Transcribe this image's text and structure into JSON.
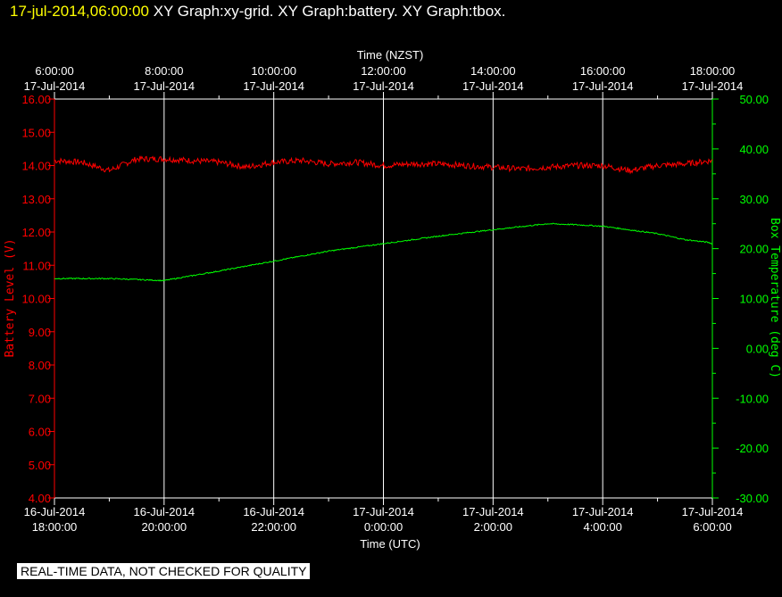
{
  "header": {
    "timestamp": "17-jul-2014,06:00:00",
    "graph_titles": [
      "XY Graph:xy-grid.",
      "XY Graph:battery.",
      "XY Graph:tbox."
    ]
  },
  "note": "REAL-TIME DATA, NOT CHECKED FOR QUALITY",
  "colors": {
    "background": "#000000",
    "grid": "#ffffff",
    "battery": "#ff0000",
    "temperature": "#00ff00",
    "header_timestamp": "#ffff00"
  },
  "chart_data": {
    "type": "line",
    "title": "",
    "top_axis": {
      "label": "Time (NZST)",
      "ticks": [
        {
          "time": "6:00:00",
          "date": "17-Jul-2014"
        },
        {
          "time": "8:00:00",
          "date": "17-Jul-2014"
        },
        {
          "time": "10:00:00",
          "date": "17-Jul-2014"
        },
        {
          "time": "12:00:00",
          "date": "17-Jul-2014"
        },
        {
          "time": "14:00:00",
          "date": "17-Jul-2014"
        },
        {
          "time": "16:00:00",
          "date": "17-Jul-2014"
        },
        {
          "time": "18:00:00",
          "date": "17-Jul-2014"
        }
      ]
    },
    "bottom_axis": {
      "label": "Time (UTC)",
      "ticks": [
        {
          "date": "16-Jul-2014",
          "time": "18:00:00"
        },
        {
          "date": "16-Jul-2014",
          "time": "20:00:00"
        },
        {
          "date": "16-Jul-2014",
          "time": "22:00:00"
        },
        {
          "date": "17-Jul-2014",
          "time": "0:00:00"
        },
        {
          "date": "17-Jul-2014",
          "time": "2:00:00"
        },
        {
          "date": "17-Jul-2014",
          "time": "4:00:00"
        },
        {
          "date": "17-Jul-2014",
          "time": "6:00:00"
        }
      ]
    },
    "xlim_hours_utc": [
      0,
      12
    ],
    "left_axis": {
      "label": "Battery Level (V)",
      "ylim": [
        4,
        16
      ],
      "ticks": [
        "4.00",
        "5.00",
        "6.00",
        "7.00",
        "8.00",
        "9.00",
        "10.00",
        "11.00",
        "12.00",
        "13.00",
        "14.00",
        "15.00",
        "16.00"
      ]
    },
    "right_axis": {
      "label": "Box Temperature (deg C)",
      "ylim": [
        -30,
        50
      ],
      "ticks": [
        "-30.00",
        "-20.00",
        "-10.00",
        "0.00",
        "10.00",
        "20.00",
        "30.00",
        "40.00",
        "50.00"
      ]
    },
    "series": [
      {
        "name": "battery",
        "axis": "left",
        "x": [
          0,
          0.5,
          1,
          1.5,
          2,
          2.5,
          3,
          3.5,
          4,
          4.5,
          5,
          5.5,
          6,
          6.5,
          7,
          7.5,
          8,
          8.5,
          9,
          9.5,
          10,
          10.5,
          11,
          11.5,
          12
        ],
        "values": [
          14.15,
          14.1,
          13.85,
          14.2,
          14.2,
          14.15,
          14.1,
          13.95,
          14.1,
          14.15,
          14.05,
          14.1,
          14.0,
          14.05,
          14.05,
          14.0,
          13.95,
          13.9,
          13.95,
          14.0,
          14.0,
          13.85,
          14.0,
          14.05,
          14.15
        ]
      },
      {
        "name": "tbox",
        "axis": "right",
        "x": [
          0,
          1,
          2,
          3,
          4,
          5,
          6,
          7,
          8,
          9,
          9.5,
          10,
          11,
          11.5,
          11.9,
          12
        ],
        "values": [
          14.0,
          14.0,
          13.6,
          15.5,
          17.5,
          19.5,
          21.0,
          22.5,
          23.8,
          25.0,
          24.8,
          24.5,
          23.0,
          21.8,
          21.3,
          21.0
        ]
      }
    ],
    "grid": true
  }
}
